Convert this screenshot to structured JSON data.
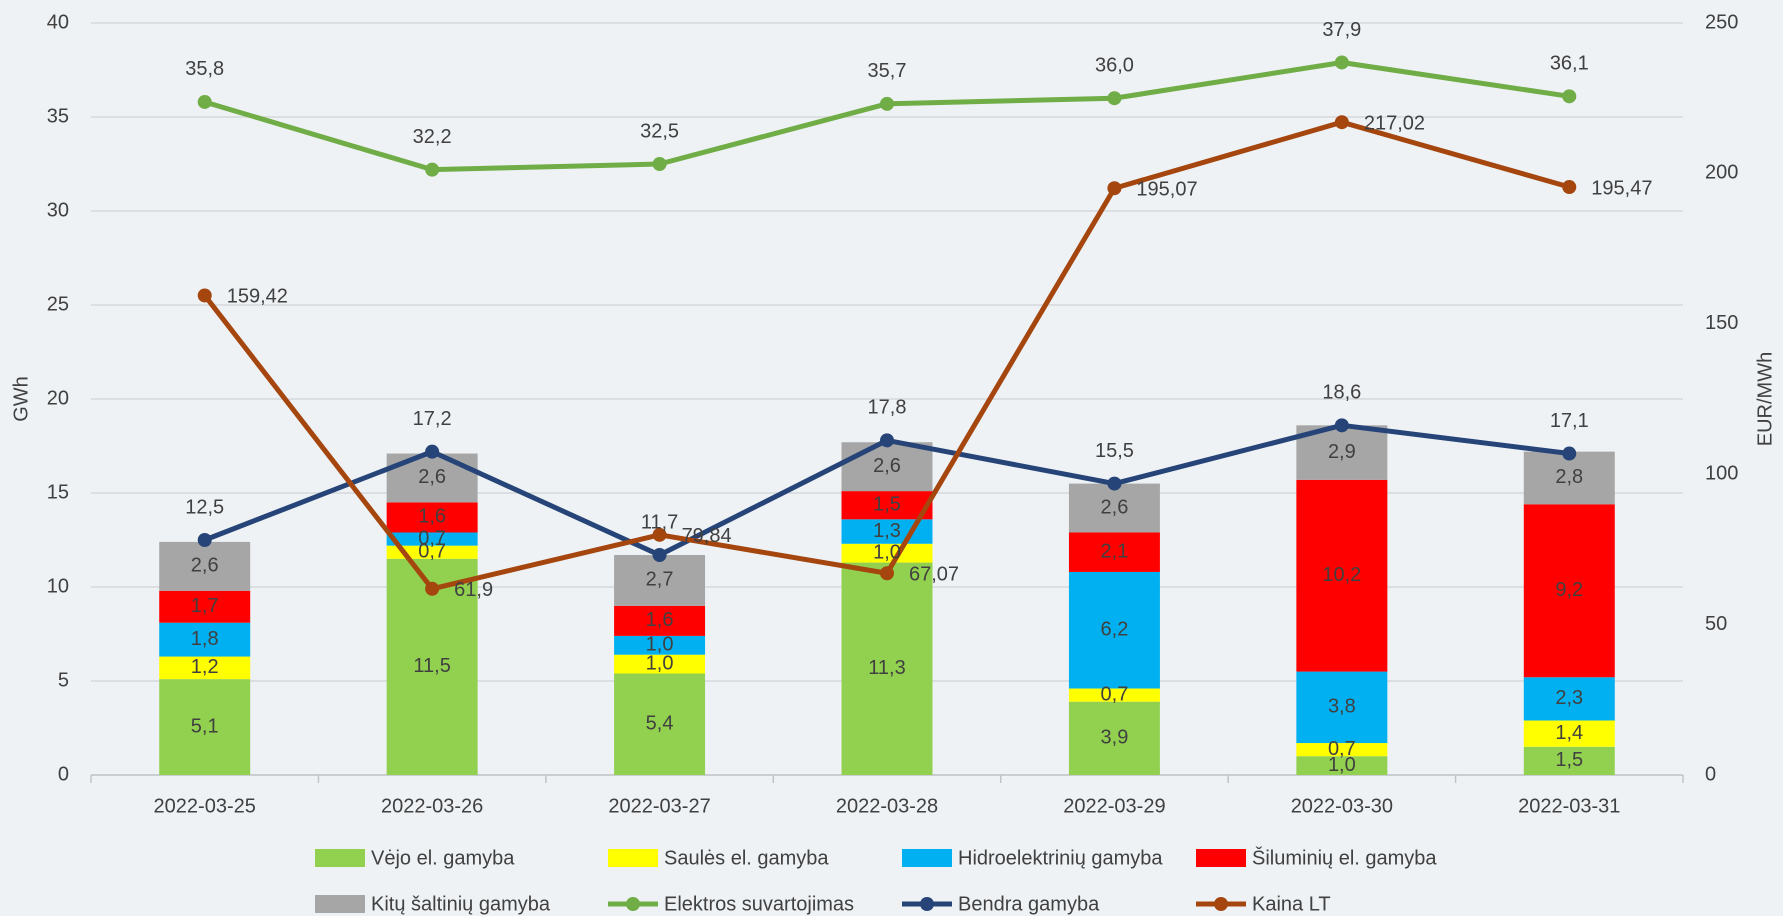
{
  "chart_data": {
    "type": "bar",
    "stacked": true,
    "categories": [
      "2022-03-25",
      "2022-03-26",
      "2022-03-27",
      "2022-03-28",
      "2022-03-29",
      "2022-03-30",
      "2022-03-31"
    ],
    "series": [
      {
        "name": "Vėjo el. gamyba",
        "color": "#92d050",
        "values": [
          5.1,
          11.5,
          5.4,
          11.3,
          3.9,
          1.0,
          1.5
        ],
        "value_labels": [
          "5,1",
          "11,5",
          "5,4",
          "11,3",
          "3,9",
          "1,0",
          "1,5"
        ]
      },
      {
        "name": "Saulės el. gamyba",
        "color": "#ffff00",
        "values": [
          1.2,
          0.7,
          1.0,
          1.0,
          0.7,
          0.7,
          1.4
        ],
        "value_labels": [
          "1,2",
          "0,7",
          "1,0",
          "1,0",
          "0,7",
          "0,7",
          "1,4"
        ]
      },
      {
        "name": "Hidroelektrinių gamyba",
        "color": "#00b0f0",
        "values": [
          1.8,
          0.7,
          1.0,
          1.3,
          6.2,
          3.8,
          2.3
        ],
        "value_labels": [
          "1,8",
          "0,7",
          "1,0",
          "1,3",
          "6,2",
          "3,8",
          "2,3"
        ]
      },
      {
        "name": "Šiluminių el. gamyba",
        "color": "#ff0000",
        "values": [
          1.7,
          1.6,
          1.6,
          1.5,
          2.1,
          10.2,
          9.2
        ],
        "value_labels": [
          "1,7",
          "1,6",
          "1,6",
          "1,5",
          "2,1",
          "10,2",
          "9,2"
        ]
      },
      {
        "name": "Kitų  šaltinių gamyba",
        "color": "#a6a6a6",
        "values": [
          2.6,
          2.6,
          2.7,
          2.6,
          2.6,
          2.9,
          2.8
        ],
        "value_labels": [
          "2,6",
          "2,6",
          "2,7",
          "2,6",
          "2,6",
          "2,9",
          "2,8"
        ]
      },
      {
        "name": "Elektros suvartojimas",
        "type": "line",
        "color": "#70ad47",
        "values": [
          35.8,
          32.2,
          32.5,
          35.7,
          36.0,
          37.9,
          36.1
        ],
        "value_labels": [
          "35,8",
          "32,2",
          "32,5",
          "35,7",
          "36,0",
          "37,9",
          "36,1"
        ]
      },
      {
        "name": "Bendra gamyba",
        "type": "line",
        "color": "#264478",
        "values": [
          12.5,
          17.2,
          11.7,
          17.8,
          15.5,
          18.6,
          17.1
        ],
        "value_labels": [
          "12,5",
          "17,2",
          "11,7",
          "17,8",
          "15,5",
          "18,6",
          "17,1"
        ]
      },
      {
        "name": "Kaina LT",
        "type": "line",
        "axis": "y2",
        "color": "#a5460f",
        "values": [
          159.42,
          61.9,
          79.84,
          67.07,
          195.07,
          217.02,
          195.47
        ],
        "value_labels": [
          "159,42",
          "61,9",
          "79,84",
          "67,07",
          "195,07",
          "217,02",
          "195,47"
        ]
      }
    ],
    "ylabel": "GWh",
    "y2label": "EUR/MWh",
    "ylim": [
      0,
      40
    ],
    "yticks": [
      0,
      5,
      10,
      15,
      20,
      25,
      30,
      35,
      40
    ],
    "y2lim": [
      0,
      250
    ],
    "y2ticks": [
      0,
      50,
      100,
      150,
      200,
      250
    ],
    "grid": true,
    "legend": "bottom"
  }
}
